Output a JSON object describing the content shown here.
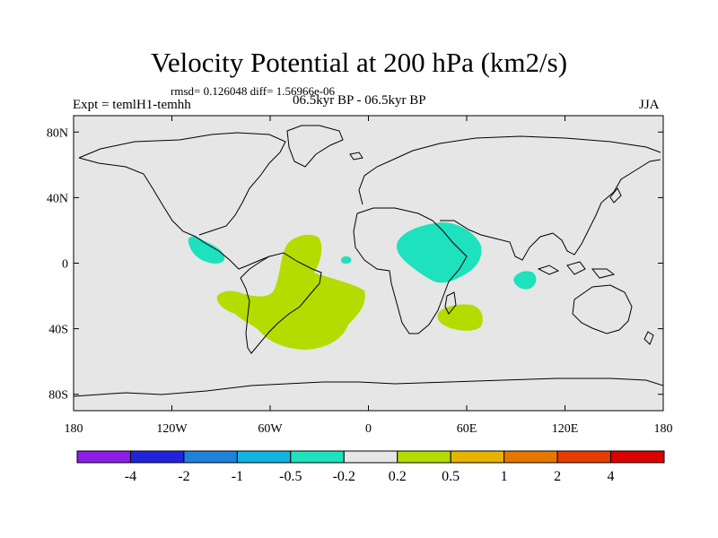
{
  "chart_data": {
    "type": "heatmap",
    "title": "Velocity Potential at 200 hPa (km2/s)",
    "stats": "rmsd= 0.126048 diff= 1.56966e-06",
    "period": "06.5kyr BP - 06.5kyr BP",
    "experiment": "Expt = temlH1-temhh",
    "season": "JJA",
    "x_ticks": [
      "180",
      "120W",
      "60W",
      "0",
      "60E",
      "120E",
      "180"
    ],
    "y_ticks": [
      "80N",
      "40N",
      "0",
      "40S",
      "80S"
    ],
    "xlim": [
      -180,
      180
    ],
    "ylim": [
      -90,
      90
    ],
    "colorbar": {
      "labels": [
        "-4",
        "-2",
        "-1",
        "-0.5",
        "-0.2",
        "0.2",
        "0.5",
        "1",
        "2",
        "4"
      ],
      "colors": [
        "#8c1ee6",
        "#2323dc",
        "#1e82dc",
        "#14b4e1",
        "#1ee1be",
        "#e6e6e6",
        "#b4dc00",
        "#e6b400",
        "#e67800",
        "#e63c00",
        "#dc0000"
      ]
    },
    "regions": [
      {
        "name": "eastern-pacific-negative",
        "value_range": "-0.5 to -0.2",
        "color": "#1ee1be"
      },
      {
        "name": "south-america-atlantic-positive",
        "value_range": "0.2 to 0.5",
        "color": "#b4dc00"
      },
      {
        "name": "equatorial-atlantic-negative",
        "value_range": "-0.5 to -0.2",
        "color": "#1ee1be"
      },
      {
        "name": "east-africa-arabia-negative",
        "value_range": "-0.5 to -0.2",
        "color": "#1ee1be"
      },
      {
        "name": "south-indian-ocean-positive",
        "value_range": "0.2 to 0.5",
        "color": "#b4dc00"
      },
      {
        "name": "east-indian-ocean-negative",
        "value_range": "-0.5 to -0.2",
        "color": "#1ee1be"
      }
    ]
  }
}
